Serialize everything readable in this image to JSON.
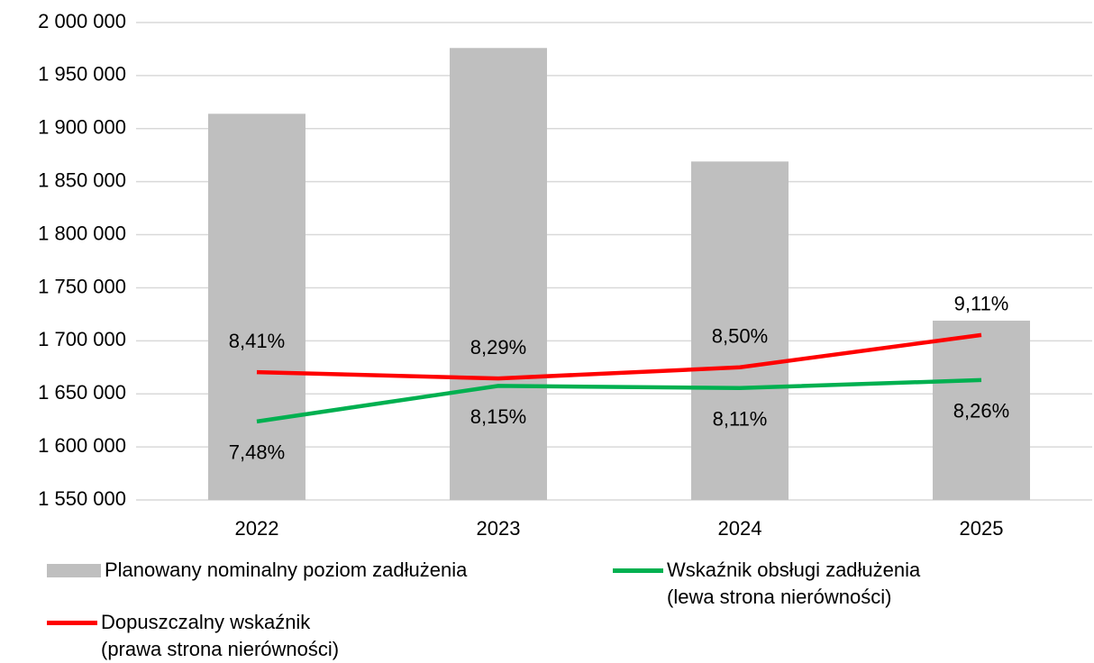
{
  "chart_data": {
    "type": "bar-line",
    "categories": [
      "2022",
      "2023",
      "2024",
      "2025"
    ],
    "series": [
      {
        "name": "Planowany nominalny poziom zadłużenia",
        "type": "bar",
        "color": "#bfbfbf",
        "values": [
          1914000,
          1976000,
          1869000,
          1719000
        ]
      },
      {
        "name": "Wskaźnik obsługi zadłużenia\n(lewa strona nierówności)",
        "type": "line",
        "axis": "y2",
        "color": "#00b050",
        "values": [
          7.48,
          8.15,
          8.11,
          8.26
        ],
        "value_labels": [
          "7,48%",
          "8,15%",
          "8,11%",
          "8,26%"
        ]
      },
      {
        "name": "Dopuszczalny wskaźnik\n(prawa strona nierówności)",
        "type": "line",
        "axis": "y2",
        "color": "#ff0000",
        "values": [
          8.41,
          8.29,
          8.5,
          9.11
        ],
        "value_labels": [
          "8,41%",
          "8,29%",
          "8,50%",
          "9,11%"
        ]
      }
    ],
    "ylim": [
      1550000,
      2000000
    ],
    "yticks": [
      {
        "value": 1550000,
        "label": "1 550 000"
      },
      {
        "value": 1600000,
        "label": "1 600 000"
      },
      {
        "value": 1650000,
        "label": "1 650 000"
      },
      {
        "value": 1700000,
        "label": "1 700 000"
      },
      {
        "value": 1750000,
        "label": "1 750 000"
      },
      {
        "value": 1800000,
        "label": "1 800 000"
      },
      {
        "value": 1850000,
        "label": "1 850 000"
      },
      {
        "value": 1900000,
        "label": "1 900 000"
      },
      {
        "value": 1950000,
        "label": "1 950 000"
      },
      {
        "value": 2000000,
        "label": "2 000 000"
      }
    ],
    "y2lim": [
      6,
      15
    ],
    "grid": true
  }
}
